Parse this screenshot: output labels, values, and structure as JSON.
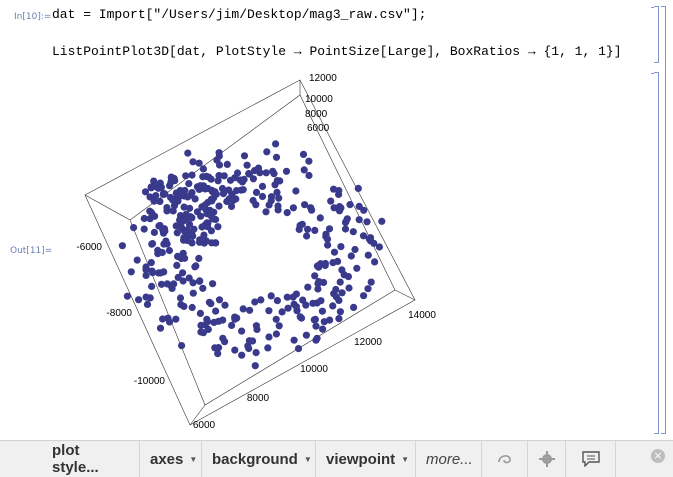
{
  "cells": {
    "input_label": "In[10]:=",
    "input_code": "dat = Import[\"/Users/jim/Desktop/mag3_raw.csv\"];",
    "second_code": "ListPointPlot3D[dat, PlotStyle → PointSize[Large], BoxRatios → {1, 1, 1}]",
    "output_label": "Out[11]="
  },
  "toolbar": {
    "plot_style": "plot style...",
    "axes": "axes",
    "background": "background",
    "viewpoint": "viewpoint",
    "more": "more...",
    "icons": [
      "swirl-icon",
      "gear-icon",
      "comment-icon"
    ],
    "close": "×"
  },
  "plot": {
    "point_color": "#3a3a8c",
    "axis_x_ticks": [
      "6000",
      "8000",
      "10000",
      "12000",
      "14000"
    ],
    "axis_y_ticks": [
      "-6000",
      "-8000",
      "-10000"
    ],
    "axis_z_ticks": [
      "6000",
      "8000",
      "10000",
      "12000"
    ]
  }
}
